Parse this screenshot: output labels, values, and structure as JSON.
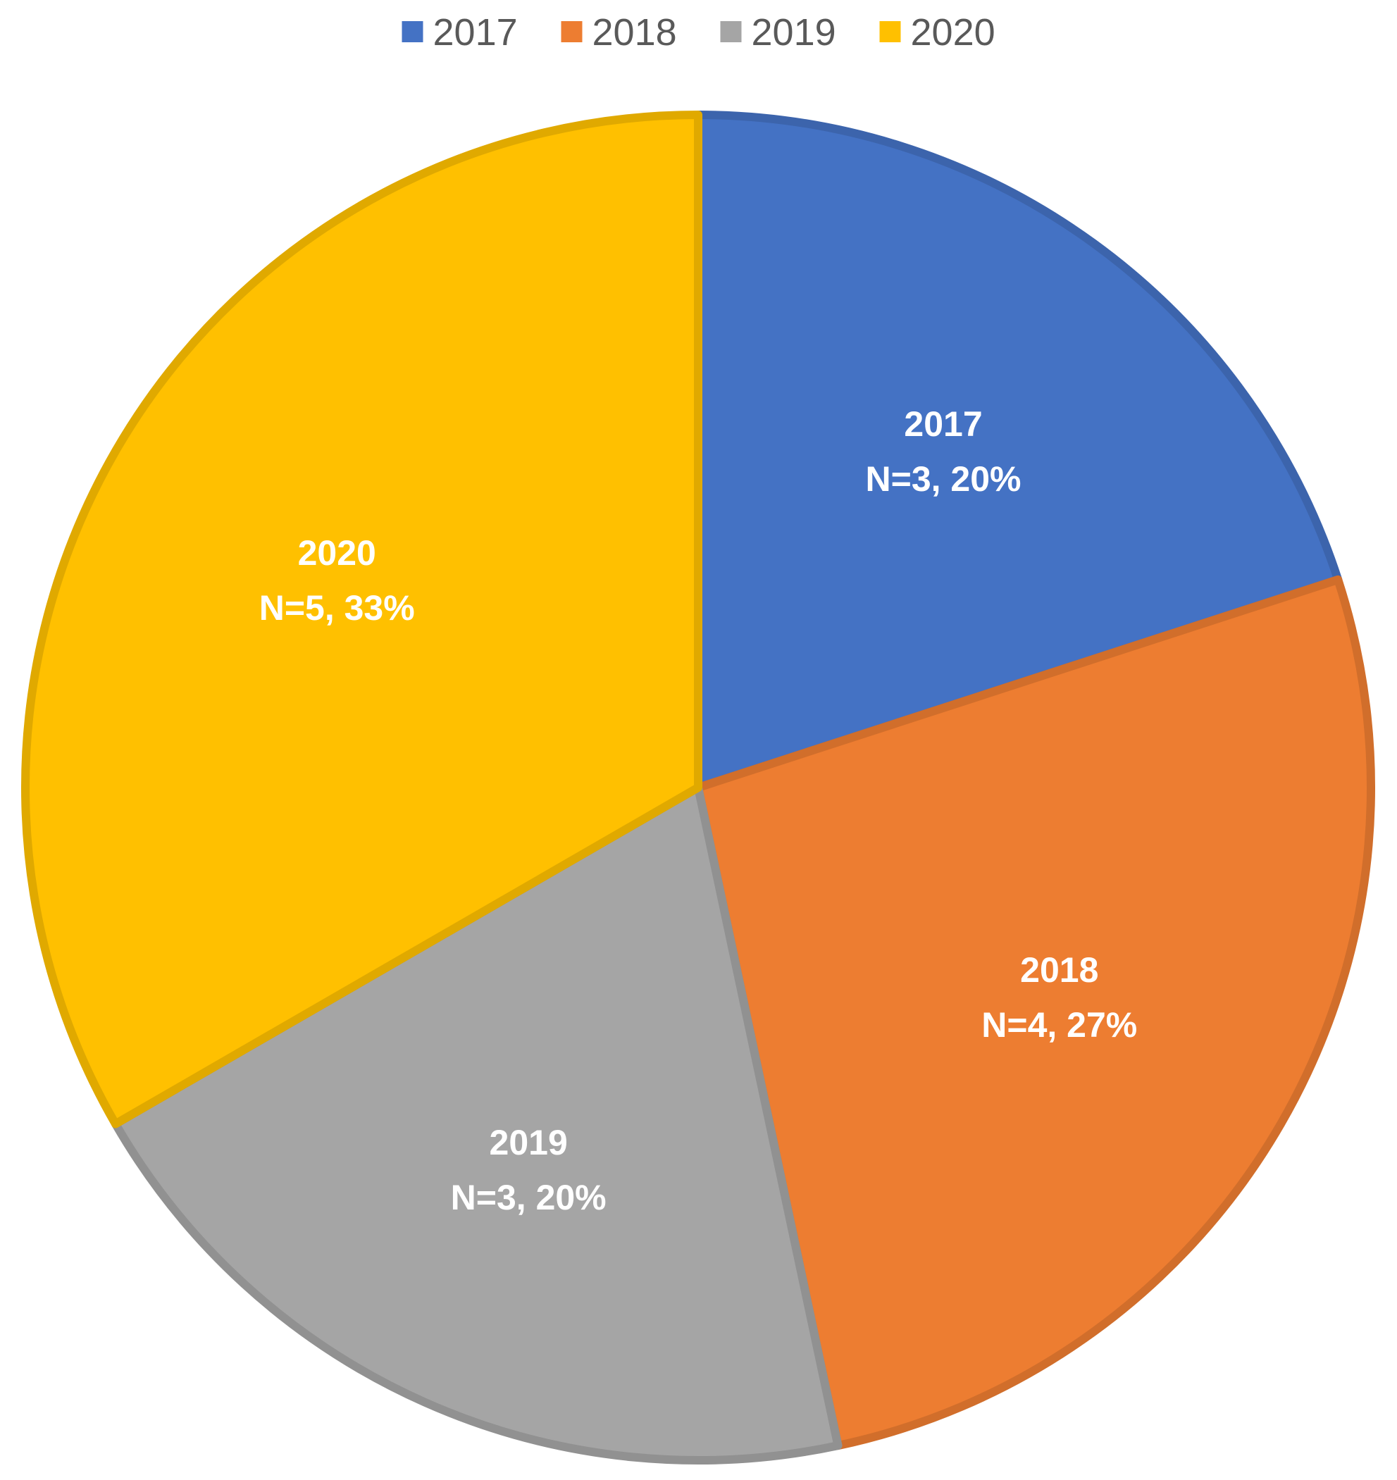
{
  "chart_data": {
    "type": "pie",
    "categories": [
      "2017",
      "2018",
      "2019",
      "2020"
    ],
    "values": [
      3,
      4,
      3,
      5
    ],
    "percents": [
      "20%",
      "27%",
      "20%",
      "33%"
    ],
    "labels": [
      {
        "year": "2017",
        "text": "N=3, 20%"
      },
      {
        "year": "2018",
        "text": "N=4, 27%"
      },
      {
        "year": "2019",
        "text": "N=3, 20%"
      },
      {
        "year": "2020",
        "text": "N=5, 33%"
      }
    ],
    "colors": [
      "#4472C4",
      "#ED7D31",
      "#A5A5A5",
      "#FFC000"
    ],
    "legend_position": "top",
    "title": ""
  }
}
